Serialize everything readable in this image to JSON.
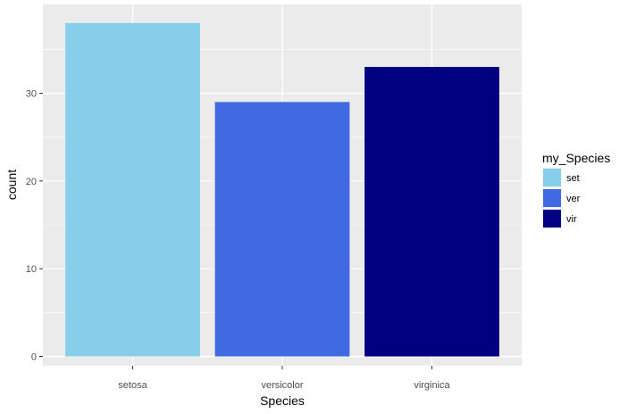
{
  "chart_data": {
    "type": "bar",
    "categories": [
      "setosa",
      "versicolor",
      "virginica"
    ],
    "values": [
      38,
      29,
      33
    ],
    "xlabel": "Species",
    "ylabel": "count",
    "ylim": [
      0,
      40
    ],
    "yticks": [
      0,
      10,
      20,
      30
    ],
    "grid": true,
    "legend": {
      "title": "my_Species",
      "placement": "right",
      "entries": [
        {
          "label": "set",
          "color": "#87ceeb"
        },
        {
          "label": "ver",
          "color": "#4169e1"
        },
        {
          "label": "vir",
          "color": "#000080"
        }
      ]
    },
    "bar_colors": [
      "#87ceeb",
      "#4169e1",
      "#000080"
    ],
    "panel_background": "#ebebeb",
    "grid_color": "#ffffff"
  }
}
